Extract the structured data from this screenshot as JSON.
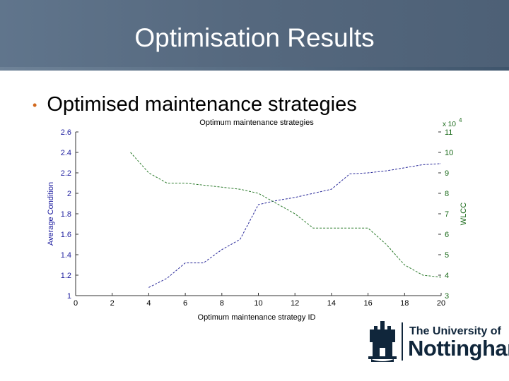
{
  "slide": {
    "title": "Optimisation Results",
    "bullet": "Optimised maintenance strategies"
  },
  "logo": {
    "line1": "The University of",
    "line2": "Nottingham",
    "crest_icon": "castle-crest-icon",
    "color": "#10263b"
  },
  "chart_data": {
    "type": "line",
    "title": "Optimum maintenance strategies",
    "xlabel": "Optimum maintenance strategy ID",
    "ylabel_left": "Average Condition",
    "ylabel_right": "WLCC",
    "right_axis_multiplier": "x 10",
    "right_axis_exponent": "4",
    "xlim": [
      0,
      20
    ],
    "ylim_left": [
      1,
      2.6
    ],
    "ylim_right": [
      3,
      11
    ],
    "x_ticks": [
      0,
      2,
      4,
      6,
      8,
      10,
      12,
      14,
      16,
      18,
      20
    ],
    "y_left_ticks": [
      "1",
      "1.2",
      "1.4",
      "1.6",
      "1.8",
      "2",
      "2.2",
      "2.4",
      "2.6"
    ],
    "y_right_ticks": [
      "3",
      "4",
      "5",
      "6",
      "7",
      "8",
      "9",
      "10",
      "11"
    ],
    "left_axis_color": "#2020a0",
    "right_axis_color": "#1a6a1a",
    "grid": false,
    "series": [
      {
        "axis": "left",
        "color": "#2a2a9a",
        "x": [
          4,
          5,
          6,
          7,
          8,
          9,
          10,
          11,
          12,
          13,
          14,
          15,
          16,
          17,
          18,
          19,
          20
        ],
        "y": [
          1.08,
          1.17,
          1.32,
          1.32,
          1.45,
          1.55,
          1.89,
          1.93,
          1.96,
          2.0,
          2.04,
          2.19,
          2.2,
          2.22,
          2.25,
          2.28,
          2.29
        ]
      },
      {
        "axis": "right",
        "color": "#2a7a2a",
        "x": [
          3,
          4,
          5,
          6,
          7,
          8,
          9,
          10,
          11,
          12,
          13,
          14,
          15,
          16,
          17,
          18,
          19,
          20
        ],
        "y": [
          10.0,
          9.0,
          8.5,
          8.5,
          8.4,
          8.3,
          8.2,
          8.0,
          7.5,
          7.0,
          6.3,
          6.3,
          6.3,
          6.3,
          5.5,
          4.5,
          4.0,
          3.9
        ]
      }
    ]
  }
}
